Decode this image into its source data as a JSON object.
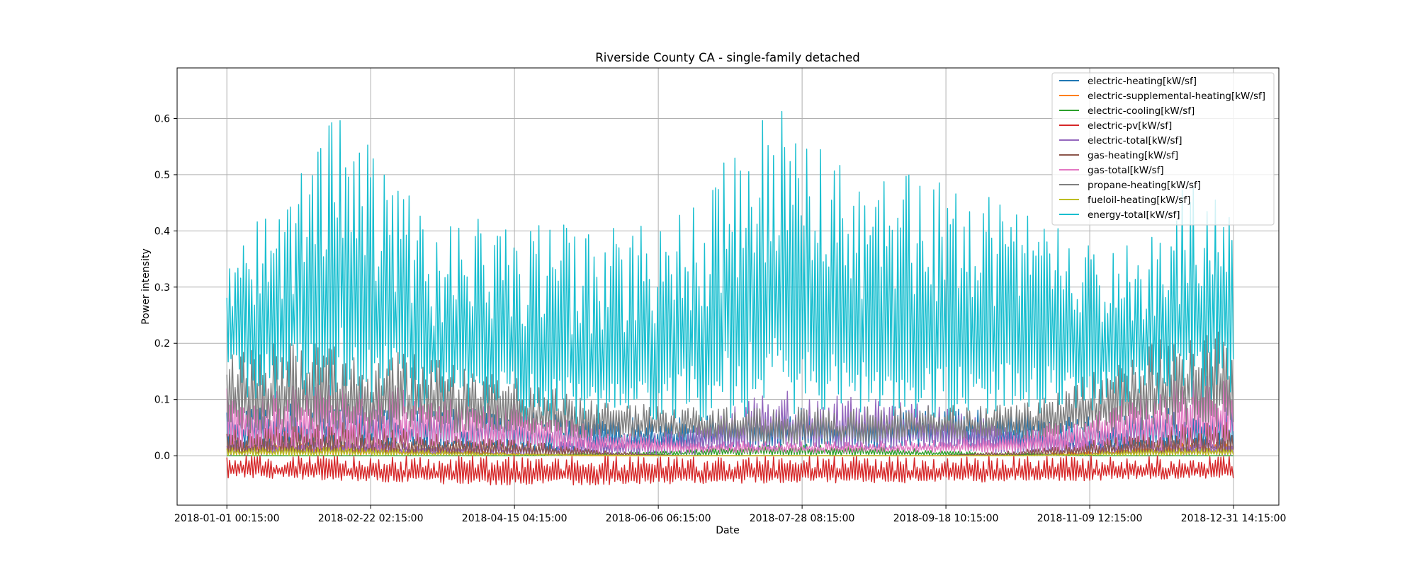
{
  "chart_data": {
    "type": "line",
    "title": "Riverside County CA - single-family detached",
    "xlabel": "Date",
    "ylabel": "Power intensity",
    "x_start": "2018-01-01 00:15:00",
    "x_end": "2018-12-31 23:45:00",
    "xlim": [
      "2017-12-14 00:00:00",
      "2019-01-17 00:00:00"
    ],
    "ylim": [
      -0.088,
      0.69
    ],
    "x_ticks": [
      "2018-01-01 00:15:00",
      "2018-02-22 02:15:00",
      "2018-04-15 04:15:00",
      "2018-06-06 06:15:00",
      "2018-07-28 08:15:00",
      "2018-09-18 10:15:00",
      "2018-11-09 12:15:00",
      "2018-12-31 14:15:00"
    ],
    "y_ticks": [
      0.0,
      0.1,
      0.2,
      0.3,
      0.4,
      0.5,
      0.6
    ],
    "y_tick_labels": [
      "0.0",
      "0.1",
      "0.2",
      "0.3",
      "0.4",
      "0.5",
      "0.6"
    ],
    "grid": true,
    "legend_position": "top-right",
    "series": [
      {
        "name": "electric-heating[kW/sf]",
        "color": "#1f77b4",
        "monthly_min": [
          0.005,
          0.005,
          0.005,
          0.005,
          0.005,
          0.01,
          0.01,
          0.01,
          0.01,
          0.005,
          0.005,
          0.005
        ],
        "monthly_max": [
          0.09,
          0.1,
          0.09,
          0.08,
          0.07,
          0.07,
          0.08,
          0.09,
          0.09,
          0.08,
          0.07,
          0.09
        ]
      },
      {
        "name": "electric-supplemental-heating[kW/sf]",
        "color": "#ff7f0e",
        "monthly_min": [
          0.0,
          0.0,
          0.0,
          0.0,
          0.0,
          0.0,
          0.0,
          0.0,
          0.0,
          0.0,
          0.0,
          0.0
        ],
        "monthly_max": [
          0.025,
          0.02,
          0.012,
          0.005,
          0.0,
          0.0,
          0.0,
          0.0,
          0.0,
          0.002,
          0.01,
          0.025
        ]
      },
      {
        "name": "electric-cooling[kW/sf]",
        "color": "#2ca02c",
        "monthly_min": [
          0.0,
          0.0,
          0.0,
          0.0,
          0.0,
          0.0,
          0.0,
          0.0,
          0.0,
          0.0,
          0.0,
          0.0
        ],
        "monthly_max": [
          0.0,
          0.0,
          0.0,
          0.0,
          0.005,
          0.01,
          0.02,
          0.02,
          0.01,
          0.005,
          0.0,
          0.0
        ]
      },
      {
        "name": "electric-pv[kW/sf]",
        "color": "#d62728",
        "monthly_min": [
          -0.04,
          -0.045,
          -0.05,
          -0.053,
          -0.052,
          -0.05,
          -0.049,
          -0.049,
          -0.048,
          -0.047,
          -0.044,
          -0.042
        ],
        "monthly_max": [
          0.0,
          0.0,
          0.0,
          0.0,
          0.0,
          0.0,
          0.0,
          0.0,
          0.0,
          0.0,
          0.0,
          0.0
        ]
      },
      {
        "name": "electric-total[kW/sf]",
        "color": "#9467bd",
        "monthly_min": [
          0.0,
          0.0,
          0.0,
          0.0,
          0.0,
          0.0,
          0.01,
          0.01,
          0.01,
          0.0,
          0.0,
          0.0
        ],
        "monthly_max": [
          0.03,
          0.03,
          0.02,
          0.02,
          0.03,
          0.05,
          0.12,
          0.11,
          0.09,
          0.05,
          0.03,
          0.03
        ]
      },
      {
        "name": "gas-heating[kW/sf]",
        "color": "#8c564b",
        "monthly_min": [
          0.0,
          0.0,
          0.0,
          0.0,
          0.0,
          0.0,
          0.0,
          0.0,
          0.0,
          0.0,
          0.0,
          0.0
        ],
        "monthly_max": [
          0.05,
          0.06,
          0.04,
          0.03,
          0.01,
          0.0,
          0.0,
          0.0,
          0.0,
          0.01,
          0.03,
          0.06
        ]
      },
      {
        "name": "gas-total[kW/sf]",
        "color": "#e377c2",
        "monthly_min": [
          0.01,
          0.01,
          0.01,
          0.01,
          0.005,
          0.005,
          0.005,
          0.005,
          0.005,
          0.005,
          0.01,
          0.01
        ],
        "monthly_max": [
          0.12,
          0.14,
          0.11,
          0.1,
          0.05,
          0.03,
          0.025,
          0.025,
          0.03,
          0.04,
          0.09,
          0.15
        ]
      },
      {
        "name": "propane-heating[kW/sf]",
        "color": "#7f7f7f",
        "monthly_min": [
          0.04,
          0.04,
          0.04,
          0.04,
          0.03,
          0.03,
          0.02,
          0.02,
          0.03,
          0.03,
          0.04,
          0.05
        ],
        "monthly_max": [
          0.2,
          0.2,
          0.18,
          0.14,
          0.1,
          0.09,
          0.09,
          0.09,
          0.09,
          0.09,
          0.16,
          0.23
        ]
      },
      {
        "name": "fueloil-heating[kW/sf]",
        "color": "#bcbd22",
        "monthly_min": [
          0.0,
          0.0,
          0.0,
          0.0,
          0.0,
          0.0,
          0.0,
          0.0,
          0.0,
          0.0,
          0.0,
          0.0
        ],
        "monthly_max": [
          0.015,
          0.015,
          0.01,
          0.005,
          0.002,
          0.0,
          0.0,
          0.0,
          0.0,
          0.0,
          0.008,
          0.015
        ]
      },
      {
        "name": "energy-total[kW/sf]",
        "color": "#17becf",
        "monthly_min": [
          0.1,
          0.1,
          0.08,
          0.06,
          0.05,
          0.06,
          0.07,
          0.07,
          0.06,
          0.07,
          0.08,
          0.1
        ],
        "monthly_max": [
          0.45,
          0.65,
          0.4,
          0.44,
          0.4,
          0.45,
          0.65,
          0.5,
          0.5,
          0.45,
          0.36,
          0.49
        ]
      }
    ]
  }
}
